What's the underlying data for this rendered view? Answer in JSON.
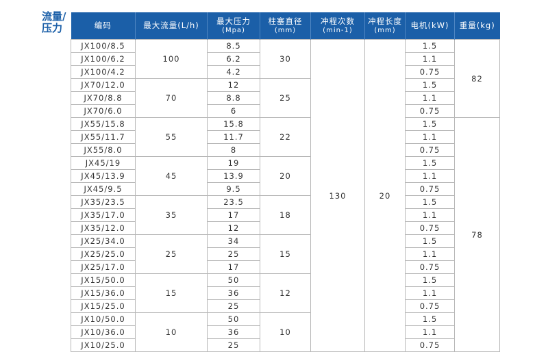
{
  "side_label": "流量/压力",
  "headers": [
    {
      "main": "编码",
      "sub": ""
    },
    {
      "main": "最大流量(L/h)",
      "sub": ""
    },
    {
      "main": "最大压力",
      "sub": "(Mpa)"
    },
    {
      "main": "柱塞直径",
      "sub": "(mm)"
    },
    {
      "main": "冲程次数",
      "sub": "(min-1)"
    },
    {
      "main": "冲程长度",
      "sub": "(mm)"
    },
    {
      "main": "电机(kW)",
      "sub": ""
    },
    {
      "main": "重量(kg)",
      "sub": ""
    }
  ],
  "header_color": "#1b5fa8",
  "groups": [
    {
      "flow": "100",
      "diameter": "30",
      "rows": [
        [
          "JX100/8.5",
          "8.5",
          "1.5"
        ],
        [
          "JX100/6.2",
          "6.2",
          "1.1"
        ],
        [
          "JX100/4.2",
          "4.2",
          "0.75"
        ]
      ]
    },
    {
      "flow": "70",
      "diameter": "25",
      "rows": [
        [
          "JX70/12.0",
          "12",
          "1.5"
        ],
        [
          "JX70/8.8",
          "8.8",
          "1.1"
        ],
        [
          "JX70/6.0",
          "6",
          "0.75"
        ]
      ]
    },
    {
      "flow": "55",
      "diameter": "22",
      "rows": [
        [
          "JX55/15.8",
          "15.8",
          "1.5"
        ],
        [
          "JX55/11.7",
          "11.7",
          "1.1"
        ],
        [
          "JX55/8.0",
          "8",
          "0.75"
        ]
      ]
    },
    {
      "flow": "45",
      "diameter": "20",
      "rows": [
        [
          "JX45/19",
          "19",
          "1.5"
        ],
        [
          "JX45/13.9",
          "13.9",
          "1.1"
        ],
        [
          "JX45/9.5",
          "9.5",
          "0.75"
        ]
      ]
    },
    {
      "flow": "35",
      "diameter": "18",
      "rows": [
        [
          "JX35/23.5",
          "23.5",
          "1.5"
        ],
        [
          "JX35/17.0",
          "17",
          "1.1"
        ],
        [
          "JX35/12.0",
          "12",
          "0.75"
        ]
      ]
    },
    {
      "flow": "25",
      "diameter": "15",
      "rows": [
        [
          "JX25/34.0",
          "34",
          "1.5"
        ],
        [
          "JX25/25.0",
          "25",
          "1.1"
        ],
        [
          "JX25/17.0",
          "17",
          "0.75"
        ]
      ]
    },
    {
      "flow": "15",
      "diameter": "12",
      "rows": [
        [
          "JX15/50.0",
          "50",
          "1.5"
        ],
        [
          "JX15/36.0",
          "36",
          "1.1"
        ],
        [
          "JX15/25.0",
          "25",
          "0.75"
        ]
      ]
    },
    {
      "flow": "10",
      "diameter": "10",
      "rows": [
        [
          "JX10/50.0",
          "50",
          "1.5"
        ],
        [
          "JX10/36.0",
          "36",
          "1.1"
        ],
        [
          "JX10/25.0",
          "25",
          "0.75"
        ]
      ]
    }
  ],
  "strokes": "130",
  "stroke_length": "20",
  "weights": [
    {
      "value": "82",
      "rows": 6
    },
    {
      "value": "78",
      "rows": 18
    }
  ]
}
